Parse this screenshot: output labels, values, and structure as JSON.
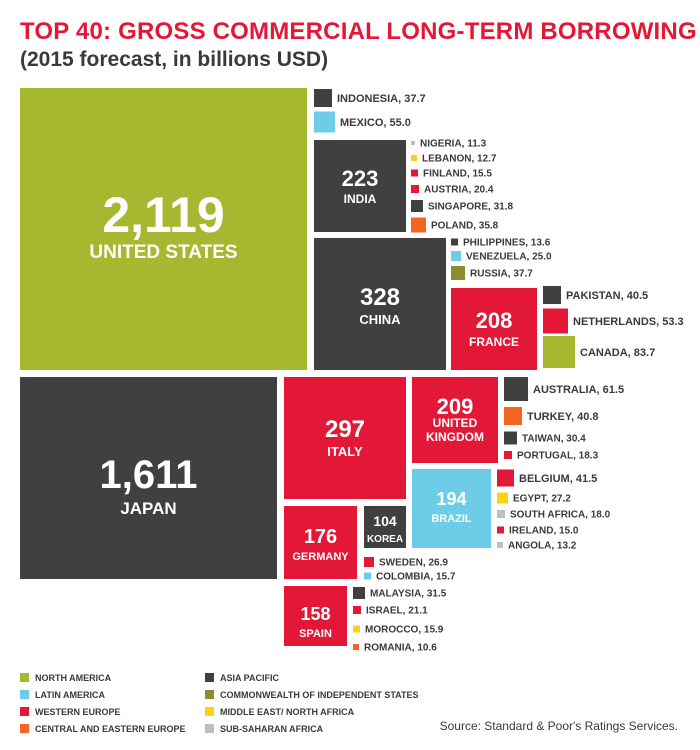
{
  "colors": {
    "north_america": "#a5b82f",
    "latin_america": "#6dcde8",
    "western_europe": "#e31837",
    "central_eastern_europe": "#f26522",
    "asia_pacific": "#404041",
    "cis": "#8f8c2f",
    "middle_east_north_africa": "#fcd116",
    "sub_saharan_africa": "#bcbec0",
    "text_dark": "#3a3a3c"
  },
  "chart_data": {
    "type": "treemap",
    "title": "TOP 40: GROSS COMMERCIAL LONG-TERM BORROWING",
    "subtitle": "(2015 forecast, in billions USD)",
    "unit": "billions USD",
    "legend": [
      {
        "region": "north_america",
        "label": "NORTH AMERICA"
      },
      {
        "region": "latin_america",
        "label": "LATIN AMERICA"
      },
      {
        "region": "western_europe",
        "label": "WESTERN EUROPE"
      },
      {
        "region": "central_eastern_europe",
        "label": "CENTRAL AND EASTERN EUROPE"
      },
      {
        "region": "asia_pacific",
        "label": "ASIA PACIFIC"
      },
      {
        "region": "cis",
        "label": "COMMONWEALTH OF INDEPENDENT STATES"
      },
      {
        "region": "middle_east_north_africa",
        "label": "MIDDLE EAST/ NORTH AFRICA"
      },
      {
        "region": "sub_saharan_africa",
        "label": "SUB-SAHARAN AFRICA"
      }
    ],
    "countries": [
      {
        "name": "UNITED STATES",
        "value": 2119,
        "label_value": "2,119",
        "region": "north_america"
      },
      {
        "name": "JAPAN",
        "value": 1611,
        "label_value": "1,611",
        "region": "asia_pacific"
      },
      {
        "name": "CHINA",
        "value": 328,
        "label_value": "328",
        "region": "asia_pacific"
      },
      {
        "name": "ITALY",
        "value": 297,
        "label_value": "297",
        "region": "western_europe"
      },
      {
        "name": "INDIA",
        "value": 223,
        "label_value": "223",
        "region": "asia_pacific"
      },
      {
        "name": "UNITED KINGDOM",
        "value": 209,
        "label_value": "209",
        "region": "western_europe"
      },
      {
        "name": "FRANCE",
        "value": 208,
        "label_value": "208",
        "region": "western_europe"
      },
      {
        "name": "BRAZIL",
        "value": 194,
        "label_value": "194",
        "region": "latin_america"
      },
      {
        "name": "GERMANY",
        "value": 176,
        "label_value": "176",
        "region": "western_europe"
      },
      {
        "name": "SPAIN",
        "value": 158,
        "label_value": "158",
        "region": "western_europe"
      },
      {
        "name": "KOREA",
        "value": 104,
        "label_value": "104",
        "region": "asia_pacific"
      },
      {
        "name": "CANADA",
        "value": 83.7,
        "label_value": "83.7",
        "region": "north_america"
      },
      {
        "name": "AUSTRALIA",
        "value": 61.5,
        "label_value": "61.5",
        "region": "asia_pacific"
      },
      {
        "name": "MEXICO",
        "value": 55.0,
        "label_value": "55.0",
        "region": "latin_america"
      },
      {
        "name": "NETHERLANDS",
        "value": 53.3,
        "label_value": "53.3",
        "region": "western_europe"
      },
      {
        "name": "BELGIUM",
        "value": 41.5,
        "label_value": "41.5",
        "region": "western_europe"
      },
      {
        "name": "TURKEY",
        "value": 40.8,
        "label_value": "40.8",
        "region": "central_eastern_europe"
      },
      {
        "name": "PAKISTAN",
        "value": 40.5,
        "label_value": "40.5",
        "region": "asia_pacific"
      },
      {
        "name": "INDONESIA",
        "value": 37.7,
        "label_value": "37.7",
        "region": "asia_pacific"
      },
      {
        "name": "RUSSIA",
        "value": 37.7,
        "label_value": "37.7",
        "region": "cis"
      },
      {
        "name": "POLAND",
        "value": 35.8,
        "label_value": "35.8",
        "region": "central_eastern_europe"
      },
      {
        "name": "SINGAPORE",
        "value": 31.8,
        "label_value": "31.8",
        "region": "asia_pacific"
      },
      {
        "name": "MALAYSIA",
        "value": 31.5,
        "label_value": "31.5",
        "region": "asia_pacific"
      },
      {
        "name": "TAIWAN",
        "value": 30.4,
        "label_value": "30.4",
        "region": "asia_pacific"
      },
      {
        "name": "EGYPT",
        "value": 27.2,
        "label_value": "27.2",
        "region": "middle_east_north_africa"
      },
      {
        "name": "SWEDEN",
        "value": 26.9,
        "label_value": "26.9",
        "region": "western_europe"
      },
      {
        "name": "VENEZUELA",
        "value": 25.0,
        "label_value": "25.0",
        "region": "latin_america"
      },
      {
        "name": "ISRAEL",
        "value": 21.1,
        "label_value": "21.1",
        "region": "western_europe"
      },
      {
        "name": "AUSTRIA",
        "value": 20.4,
        "label_value": "20.4",
        "region": "western_europe"
      },
      {
        "name": "PORTUGAL",
        "value": 18.3,
        "label_value": "18.3",
        "region": "western_europe"
      },
      {
        "name": "SOUTH AFRICA",
        "value": 18.0,
        "label_value": "18.0",
        "region": "sub_saharan_africa"
      },
      {
        "name": "MOROCCO",
        "value": 15.9,
        "label_value": "15.9",
        "region": "middle_east_north_africa"
      },
      {
        "name": "COLOMBIA",
        "value": 15.7,
        "label_value": "15.7",
        "region": "latin_america"
      },
      {
        "name": "FINLAND",
        "value": 15.5,
        "label_value": "15.5",
        "region": "western_europe"
      },
      {
        "name": "IRELAND",
        "value": 15.0,
        "label_value": "15.0",
        "region": "western_europe"
      },
      {
        "name": "PHILIPPINES",
        "value": 13.6,
        "label_value": "13.6",
        "region": "asia_pacific"
      },
      {
        "name": "ANGOLA",
        "value": 13.2,
        "label_value": "13.2",
        "region": "sub_saharan_africa"
      },
      {
        "name": "LEBANON",
        "value": 12.7,
        "label_value": "12.7",
        "region": "middle_east_north_africa"
      },
      {
        "name": "NIGERIA",
        "value": 11.3,
        "label_value": "11.3",
        "region": "sub_saharan_africa"
      },
      {
        "name": "ROMANIA",
        "value": 10.6,
        "label_value": "10.6",
        "region": "central_eastern_europe"
      }
    ]
  },
  "source": "Source: Standard & Poor's Ratings Services."
}
